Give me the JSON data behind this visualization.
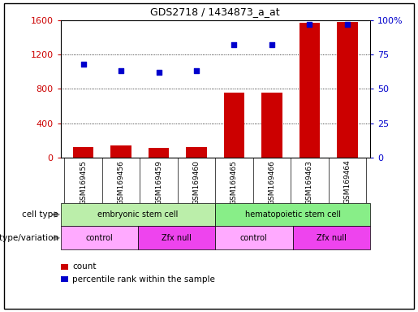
{
  "title": "GDS2718 / 1434873_a_at",
  "samples": [
    "GSM169455",
    "GSM169456",
    "GSM169459",
    "GSM169460",
    "GSM169465",
    "GSM169466",
    "GSM169463",
    "GSM169464"
  ],
  "counts": [
    120,
    145,
    110,
    125,
    760,
    760,
    1570,
    1580
  ],
  "percentile_ranks": [
    68,
    63,
    62,
    63,
    82,
    82,
    97,
    97
  ],
  "left_ylim": [
    0,
    1600
  ],
  "right_ylim": [
    0,
    100
  ],
  "left_yticks": [
    0,
    400,
    800,
    1200,
    1600
  ],
  "right_yticks": [
    0,
    25,
    50,
    75,
    100
  ],
  "bar_color": "#cc0000",
  "scatter_color": "#0000cc",
  "cell_type_blocks": [
    {
      "label": "embryonic stem cell",
      "start": 0,
      "end": 4,
      "color": "#bbeeaa"
    },
    {
      "label": "hematopoietic stem cell",
      "start": 4,
      "end": 8,
      "color": "#88ee88"
    }
  ],
  "genotype_blocks": [
    {
      "label": "control",
      "start": 0,
      "end": 2,
      "color": "#ffaaff"
    },
    {
      "label": "Zfx null",
      "start": 2,
      "end": 4,
      "color": "#ee44ee"
    },
    {
      "label": "control",
      "start": 4,
      "end": 6,
      "color": "#ffaaff"
    },
    {
      "label": "Zfx null",
      "start": 6,
      "end": 8,
      "color": "#ee44ee"
    }
  ],
  "legend_count_label": "count",
  "legend_pct_label": "percentile rank within the sample",
  "cell_type_label": "cell type",
  "genotype_label": "genotype/variation",
  "xtick_bg_color": "#cccccc",
  "background_color": "#ffffff",
  "grid_color": "#000000",
  "tick_label_color_left": "#cc0000",
  "tick_label_color_right": "#0000cc"
}
